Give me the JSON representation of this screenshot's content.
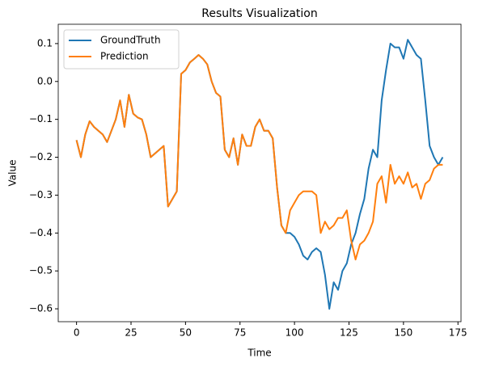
{
  "chart_data": {
    "type": "line",
    "title": "Results Visualization",
    "x_label": "Time",
    "y_label": "Value",
    "x": [
      0,
      2,
      4,
      6,
      8,
      10,
      12,
      14,
      16,
      18,
      20,
      22,
      24,
      26,
      28,
      30,
      32,
      34,
      36,
      38,
      40,
      42,
      44,
      46,
      48,
      50,
      52,
      54,
      56,
      58,
      60,
      62,
      64,
      66,
      68,
      70,
      72,
      74,
      76,
      78,
      80,
      82,
      84,
      86,
      88,
      90,
      92,
      94,
      96,
      98,
      100,
      102,
      104,
      106,
      108,
      110,
      112,
      114,
      116,
      118,
      120,
      122,
      124,
      126,
      128,
      130,
      132,
      134,
      136,
      138,
      140,
      142,
      144,
      146,
      148,
      150,
      152,
      154,
      156,
      158,
      160,
      162,
      164,
      166,
      168
    ],
    "series": [
      {
        "name": "GroundTruth",
        "color": "#1f77b4",
        "values": [
          -0.155,
          -0.2,
          -0.14,
          -0.105,
          -0.12,
          -0.13,
          -0.14,
          -0.16,
          -0.13,
          -0.1,
          -0.05,
          -0.12,
          -0.035,
          -0.085,
          -0.095,
          -0.1,
          -0.14,
          -0.2,
          -0.19,
          -0.18,
          -0.17,
          -0.33,
          -0.31,
          -0.29,
          0.02,
          0.03,
          0.05,
          0.06,
          0.07,
          0.06,
          0.045,
          0.0,
          -0.03,
          -0.04,
          -0.18,
          -0.2,
          -0.15,
          -0.22,
          -0.14,
          -0.17,
          -0.17,
          -0.12,
          -0.1,
          -0.13,
          -0.13,
          -0.15,
          -0.28,
          -0.38,
          -0.4,
          -0.4,
          -0.41,
          -0.43,
          -0.46,
          -0.47,
          -0.45,
          -0.44,
          -0.45,
          -0.51,
          -0.6,
          -0.53,
          -0.55,
          -0.5,
          -0.48,
          -0.43,
          -0.4,
          -0.35,
          -0.31,
          -0.23,
          -0.18,
          -0.2,
          -0.05,
          0.03,
          0.1,
          0.09,
          0.09,
          0.06,
          0.11,
          0.09,
          0.07,
          0.06,
          -0.05,
          -0.17,
          -0.2,
          -0.22,
          -0.2
        ]
      },
      {
        "name": "Prediction",
        "color": "#ff7f0e",
        "values": [
          -0.155,
          -0.2,
          -0.14,
          -0.105,
          -0.12,
          -0.13,
          -0.14,
          -0.16,
          -0.13,
          -0.1,
          -0.05,
          -0.12,
          -0.035,
          -0.085,
          -0.095,
          -0.1,
          -0.14,
          -0.2,
          -0.19,
          -0.18,
          -0.17,
          -0.33,
          -0.31,
          -0.29,
          0.02,
          0.03,
          0.05,
          0.06,
          0.07,
          0.06,
          0.045,
          0.0,
          -0.03,
          -0.04,
          -0.18,
          -0.2,
          -0.15,
          -0.22,
          -0.14,
          -0.17,
          -0.17,
          -0.12,
          -0.1,
          -0.13,
          -0.13,
          -0.15,
          -0.28,
          -0.38,
          -0.4,
          -0.34,
          -0.32,
          -0.3,
          -0.29,
          -0.29,
          -0.29,
          -0.3,
          -0.4,
          -0.37,
          -0.39,
          -0.38,
          -0.36,
          -0.36,
          -0.34,
          -0.42,
          -0.47,
          -0.43,
          -0.42,
          -0.4,
          -0.37,
          -0.27,
          -0.25,
          -0.32,
          -0.22,
          -0.27,
          -0.25,
          -0.27,
          -0.24,
          -0.28,
          -0.27,
          -0.31,
          -0.27,
          -0.26,
          -0.23,
          -0.22,
          -0.22
        ]
      }
    ],
    "xlim": [
      -8.4,
      176.4
    ],
    "xticks": [
      0,
      25,
      50,
      75,
      100,
      125,
      150,
      175
    ],
    "ylim": [
      -0.634,
      0.151
    ],
    "yticks": [
      {
        "value": -0.6,
        "label": "−0.6"
      },
      {
        "value": -0.5,
        "label": "−0.5"
      },
      {
        "value": -0.4,
        "label": "−0.4"
      },
      {
        "value": -0.3,
        "label": "−0.3"
      },
      {
        "value": -0.2,
        "label": "−0.2"
      },
      {
        "value": -0.1,
        "label": "−0.1"
      },
      {
        "value": 0,
        "label": "0.0"
      },
      0.1
    ],
    "legend": "upper left"
  }
}
